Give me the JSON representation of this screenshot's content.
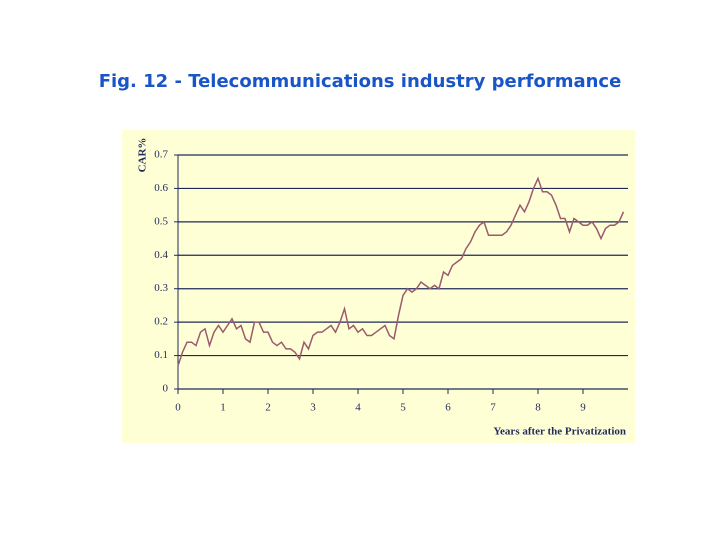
{
  "chart_data": {
    "type": "line",
    "title": "Fig. 12 - Telecommunications industry performance",
    "y_label": "CAR%",
    "x_label": "Years after the Privatization",
    "x": [
      0,
      0.1,
      0.2,
      0.3,
      0.4,
      0.5,
      0.6,
      0.7,
      0.8,
      0.9,
      1,
      1.1,
      1.2,
      1.3,
      1.4,
      1.5,
      1.6,
      1.7,
      1.8,
      1.9,
      2,
      2.1,
      2.2,
      2.3,
      2.4,
      2.5,
      2.6,
      2.7,
      2.8,
      2.9,
      3,
      3.1,
      3.2,
      3.3,
      3.4,
      3.5,
      3.6,
      3.7,
      3.8,
      3.9,
      4,
      4.1,
      4.2,
      4.3,
      4.4,
      4.5,
      4.6,
      4.7,
      4.8,
      4.9,
      5,
      5.1,
      5.2,
      5.3,
      5.4,
      5.5,
      5.6,
      5.7,
      5.8,
      5.9,
      6,
      6.1,
      6.2,
      6.3,
      6.4,
      6.5,
      6.6,
      6.7,
      6.8,
      6.9,
      7,
      7.1,
      7.2,
      7.3,
      7.4,
      7.5,
      7.6,
      7.7,
      7.8,
      7.9,
      8,
      8.1,
      8.2,
      8.3,
      8.4,
      8.5,
      8.6,
      8.7,
      8.8,
      8.9,
      9,
      9.1,
      9.2,
      9.3,
      9.4,
      9.5,
      9.6,
      9.7,
      9.8,
      9.9
    ],
    "series": [
      {
        "name": "CAR%",
        "color": "#9b5a6e",
        "values": [
          0.07,
          0.11,
          0.14,
          0.14,
          0.13,
          0.17,
          0.18,
          0.13,
          0.17,
          0.19,
          0.17,
          0.19,
          0.21,
          0.18,
          0.19,
          0.15,
          0.14,
          0.2,
          0.2,
          0.17,
          0.17,
          0.14,
          0.13,
          0.14,
          0.12,
          0.12,
          0.11,
          0.09,
          0.14,
          0.12,
          0.16,
          0.17,
          0.17,
          0.18,
          0.19,
          0.17,
          0.2,
          0.24,
          0.18,
          0.19,
          0.17,
          0.18,
          0.16,
          0.16,
          0.17,
          0.18,
          0.19,
          0.16,
          0.15,
          0.22,
          0.28,
          0.3,
          0.29,
          0.3,
          0.32,
          0.31,
          0.3,
          0.31,
          0.3,
          0.35,
          0.34,
          0.37,
          0.38,
          0.39,
          0.42,
          0.44,
          0.47,
          0.49,
          0.5,
          0.46,
          0.46,
          0.46,
          0.46,
          0.47,
          0.49,
          0.52,
          0.55,
          0.53,
          0.56,
          0.6,
          0.63,
          0.59,
          0.59,
          0.58,
          0.55,
          0.51,
          0.51,
          0.47,
          0.51,
          0.5,
          0.49,
          0.49,
          0.5,
          0.48,
          0.45,
          0.48,
          0.49,
          0.49,
          0.5,
          0.53
        ]
      }
    ],
    "xlim": [
      0,
      10
    ],
    "xticks": [
      0,
      1,
      2,
      3,
      4,
      5,
      6,
      7,
      8,
      9
    ],
    "ylim": [
      0,
      0.7
    ],
    "yticks": [
      0,
      0.1,
      0.2,
      0.3,
      0.4,
      0.5,
      0.6,
      0.7
    ],
    "grid": true,
    "grid_color": "#1f2a5c",
    "background": "#ffffd6"
  }
}
